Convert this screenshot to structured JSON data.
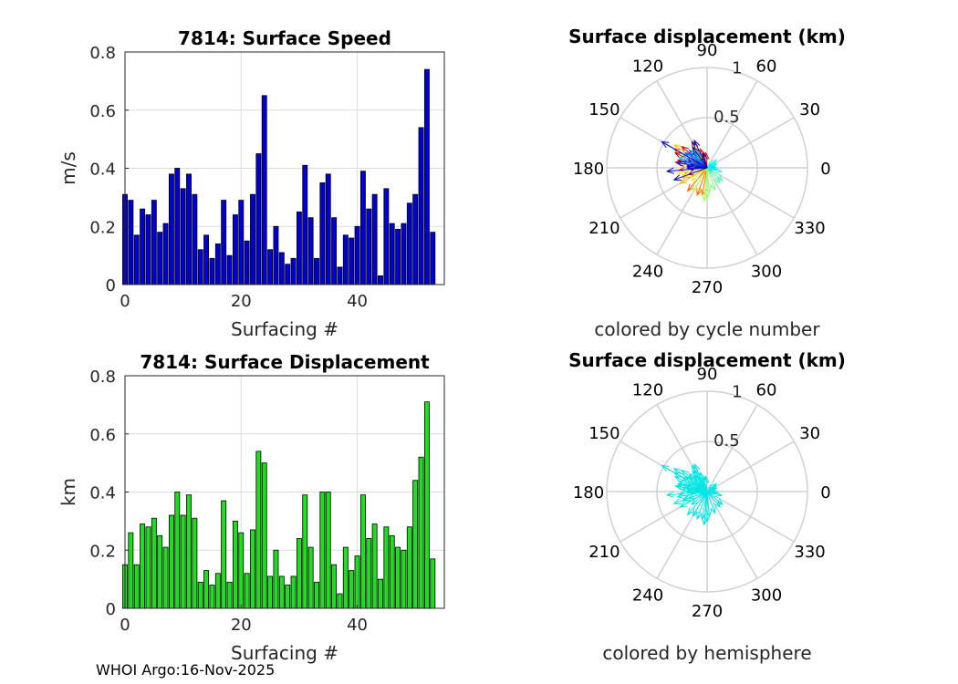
{
  "footer": "WHOI Argo:16-Nov-2025",
  "chart_data": [
    {
      "type": "bar",
      "title": "7814: Surface Speed",
      "xlabel": "Surfacing #",
      "ylabel": "m/s",
      "xlim": [
        0,
        55
      ],
      "ylim": [
        0,
        0.8
      ],
      "xticks": [
        "0",
        "20",
        "40"
      ],
      "xtick_values": [
        0,
        20,
        40
      ],
      "yticks": [
        "0",
        "0.2",
        "0.4",
        "0.6",
        "0.8"
      ],
      "ytick_values": [
        0,
        0.2,
        0.4,
        0.6,
        0.8
      ],
      "bar_color": "#0000d6",
      "x": [
        0,
        1,
        2,
        3,
        4,
        5,
        6,
        7,
        8,
        9,
        10,
        11,
        12,
        13,
        14,
        15,
        16,
        17,
        18,
        19,
        20,
        21,
        22,
        23,
        24,
        25,
        26,
        27,
        28,
        29,
        30,
        31,
        32,
        33,
        34,
        35,
        36,
        37,
        38,
        39,
        40,
        41,
        42,
        43,
        44,
        45,
        46,
        47,
        48,
        49,
        50,
        51,
        52,
        53
      ],
      "values": [
        0.31,
        0.29,
        0.17,
        0.26,
        0.24,
        0.29,
        0.18,
        0.21,
        0.38,
        0.4,
        0.33,
        0.38,
        0.31,
        0.12,
        0.17,
        0.09,
        0.14,
        0.29,
        0.1,
        0.24,
        0.29,
        0.15,
        0.31,
        0.45,
        0.65,
        0.12,
        0.2,
        0.11,
        0.07,
        0.09,
        0.25,
        0.41,
        0.23,
        0.09,
        0.35,
        0.38,
        0.23,
        0.06,
        0.17,
        0.16,
        0.2,
        0.39,
        0.26,
        0.31,
        0.03,
        0.33,
        0.21,
        0.19,
        0.21,
        0.28,
        0.31,
        0.54,
        0.74,
        0.18
      ]
    },
    {
      "type": "polar",
      "title": "Surface displacement (km)",
      "caption": "colored by cycle number",
      "rlim": [
        0,
        1
      ],
      "rticks": [
        "0.5",
        "1"
      ],
      "angle_ticks": [
        "0",
        "30",
        "60",
        "90",
        "120",
        "150",
        "180",
        "210",
        "240",
        "270",
        "300",
        "330"
      ],
      "coloring": "cycle",
      "series": [
        {
          "name": "displacement",
          "angles_deg": [
            120,
            155,
            200,
            165,
            140,
            170,
            110,
            95,
            185,
            150,
            200,
            230,
            250,
            260,
            180,
            165,
            210,
            145,
            120,
            175,
            190,
            200,
            220,
            240,
            265,
            270,
            275,
            290,
            310,
            320,
            345,
            30,
            40,
            20,
            350,
            5,
            160,
            150,
            130,
            125,
            135,
            140,
            145,
            160,
            165,
            170,
            175,
            180,
            115,
            150,
            185,
            200,
            105,
            125
          ],
          "radii_km": [
            0.3,
            0.35,
            0.2,
            0.3,
            0.33,
            0.32,
            0.2,
            0.15,
            0.28,
            0.38,
            0.26,
            0.3,
            0.29,
            0.28,
            0.18,
            0.22,
            0.31,
            0.4,
            0.25,
            0.25,
            0.3,
            0.25,
            0.2,
            0.28,
            0.33,
            0.3,
            0.25,
            0.23,
            0.2,
            0.2,
            0.15,
            0.1,
            0.12,
            0.1,
            0.1,
            0.08,
            0.3,
            0.28,
            0.2,
            0.2,
            0.25,
            0.22,
            0.26,
            0.2,
            0.25,
            0.3,
            0.2,
            0.2,
            0.3,
            0.52,
            0.4,
            0.35,
            0.15,
            0.25
          ]
        }
      ]
    },
    {
      "type": "bar",
      "title": "7814: Surface Displacement",
      "xlabel": "Surfacing #",
      "ylabel": "km",
      "xlim": [
        0,
        55
      ],
      "ylim": [
        0,
        0.8
      ],
      "xticks": [
        "0",
        "20",
        "40"
      ],
      "xtick_values": [
        0,
        20,
        40
      ],
      "yticks": [
        "0",
        "0.2",
        "0.4",
        "0.6",
        "0.8"
      ],
      "ytick_values": [
        0,
        0.2,
        0.4,
        0.6,
        0.8
      ],
      "bar_color": "#1fdd1f",
      "x": [
        0,
        1,
        2,
        3,
        4,
        5,
        6,
        7,
        8,
        9,
        10,
        11,
        12,
        13,
        14,
        15,
        16,
        17,
        18,
        19,
        20,
        21,
        22,
        23,
        24,
        25,
        26,
        27,
        28,
        29,
        30,
        31,
        32,
        33,
        34,
        35,
        36,
        37,
        38,
        39,
        40,
        41,
        42,
        43,
        44,
        45,
        46,
        47,
        48,
        49,
        50,
        51,
        52,
        53
      ],
      "values": [
        0.15,
        0.26,
        0.15,
        0.29,
        0.28,
        0.31,
        0.25,
        0.21,
        0.32,
        0.4,
        0.32,
        0.39,
        0.31,
        0.09,
        0.13,
        0.08,
        0.12,
        0.37,
        0.09,
        0.3,
        0.26,
        0.12,
        0.27,
        0.54,
        0.5,
        0.11,
        0.2,
        0.11,
        0.08,
        0.11,
        0.24,
        0.39,
        0.21,
        0.09,
        0.4,
        0.4,
        0.15,
        0.05,
        0.21,
        0.13,
        0.18,
        0.39,
        0.24,
        0.29,
        0.1,
        0.28,
        0.25,
        0.21,
        0.2,
        0.28,
        0.44,
        0.52,
        0.71,
        0.17
      ]
    },
    {
      "type": "polar",
      "title": "Surface displacement (km)",
      "caption": "colored by hemisphere",
      "rlim": [
        0,
        1
      ],
      "rticks": [
        "0.5",
        "1"
      ],
      "angle_ticks": [
        "0",
        "30",
        "60",
        "90",
        "120",
        "150",
        "180",
        "210",
        "240",
        "270",
        "300",
        "330"
      ],
      "coloring": "single",
      "series_color": "#00e5e5",
      "series": [
        {
          "name": "displacement",
          "angles_deg": [
            120,
            155,
            200,
            165,
            140,
            170,
            110,
            95,
            185,
            150,
            200,
            230,
            250,
            260,
            180,
            165,
            210,
            145,
            120,
            175,
            190,
            200,
            220,
            240,
            265,
            270,
            275,
            290,
            310,
            320,
            345,
            30,
            40,
            20,
            350,
            5,
            160,
            150,
            130,
            125,
            135,
            140,
            145,
            160,
            165,
            170,
            175,
            180,
            115,
            150,
            185,
            200,
            105,
            125
          ],
          "radii_km": [
            0.3,
            0.35,
            0.2,
            0.3,
            0.33,
            0.32,
            0.2,
            0.15,
            0.28,
            0.38,
            0.26,
            0.3,
            0.29,
            0.28,
            0.18,
            0.22,
            0.31,
            0.4,
            0.25,
            0.25,
            0.3,
            0.25,
            0.2,
            0.28,
            0.33,
            0.3,
            0.25,
            0.23,
            0.2,
            0.2,
            0.15,
            0.1,
            0.12,
            0.1,
            0.1,
            0.08,
            0.3,
            0.28,
            0.2,
            0.2,
            0.25,
            0.22,
            0.26,
            0.2,
            0.25,
            0.3,
            0.2,
            0.2,
            0.3,
            0.52,
            0.4,
            0.35,
            0.15,
            0.25
          ]
        }
      ]
    }
  ]
}
